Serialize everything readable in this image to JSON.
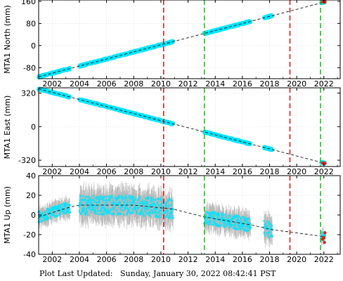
{
  "footer": {
    "label": "Plot Last Updated:",
    "timestamp": "Sunday, January 30, 2022 08:42:41 PST"
  },
  "colors": {
    "data": "#00e5ff",
    "error_bar": "#b8b8b8",
    "model": "#000000",
    "event_red": "#e0201b",
    "event_green": "#22c222",
    "latest": "#e0201b"
  },
  "chart_data": [
    {
      "type": "scatter",
      "ylabel": "MTA1 North (mm)",
      "xlim": [
        2001.0,
        2023.2
      ],
      "ylim": [
        -120,
        165
      ],
      "yticks": [
        -80,
        0,
        80,
        160
      ],
      "xticks": [
        2002,
        2004,
        2006,
        2008,
        2010,
        2012,
        2014,
        2016,
        2018,
        2020,
        2022
      ],
      "segments": [
        [
          2001.0,
          2003.3
        ],
        [
          2004.0,
          2010.9
        ],
        [
          2013.2,
          2016.6
        ],
        [
          2017.6,
          2018.2
        ],
        [
          2021.8,
          2022.08
        ]
      ],
      "model_line": {
        "x": [
          2001.0,
          2022.08
        ],
        "y": [
          -113,
          158
        ]
      },
      "events_red": [
        2010.2,
        2019.5
      ],
      "events_green": [
        2013.2,
        2021.75
      ],
      "latest_point": {
        "x": 2022.08,
        "y": 158
      },
      "grid": true
    },
    {
      "type": "scatter",
      "ylabel": "MTA1 East (mm)",
      "xlim": [
        2001.0,
        2023.2
      ],
      "ylim": [
        -380,
        370
      ],
      "yticks": [
        -320,
        0,
        320
      ],
      "xticks": [
        2002,
        2004,
        2006,
        2008,
        2010,
        2012,
        2014,
        2016,
        2018,
        2020,
        2022
      ],
      "segments": [
        [
          2001.0,
          2003.3
        ],
        [
          2004.0,
          2010.9
        ],
        [
          2013.2,
          2016.6
        ],
        [
          2017.6,
          2018.2
        ],
        [
          2021.8,
          2022.08
        ]
      ],
      "model_line": {
        "x": [
          2001.0,
          2022.08
        ],
        "y": [
          360,
          -350
        ]
      },
      "events_red": [
        2010.2,
        2019.5
      ],
      "events_green": [
        2013.2,
        2021.75
      ],
      "latest_point": {
        "x": 2022.08,
        "y": -350
      },
      "grid": true
    },
    {
      "type": "scatter",
      "ylabel": "MTA1 Up (mm)",
      "xlim": [
        2001.0,
        2023.2
      ],
      "ylim": [
        -40,
        40
      ],
      "yticks": [
        -40,
        -20,
        0,
        20,
        40
      ],
      "xticks": [
        2002,
        2004,
        2006,
        2008,
        2010,
        2012,
        2014,
        2016,
        2018,
        2020,
        2022
      ],
      "segments": [
        [
          2001.0,
          2003.3
        ],
        [
          2004.0,
          2010.9
        ],
        [
          2013.2,
          2016.6
        ],
        [
          2017.6,
          2018.2
        ],
        [
          2021.8,
          2022.08
        ]
      ],
      "model_line": {
        "x": [
          2001.0,
          2003.3,
          2004.0,
          2008.0,
          2010.9,
          2013.2,
          2016.6,
          2018.2,
          2022.08
        ],
        "y": [
          -2,
          8,
          10,
          10,
          6,
          -2,
          -10,
          -15,
          -22
        ]
      },
      "scatter_amplitude": [
        4,
        7,
        5,
        6,
        3
      ],
      "events_red": [
        2010.2,
        2019.5
      ],
      "events_green": [
        2013.2,
        2021.75
      ],
      "latest_point": {
        "x": 2022.08,
        "y": -22
      },
      "grid": true
    }
  ]
}
